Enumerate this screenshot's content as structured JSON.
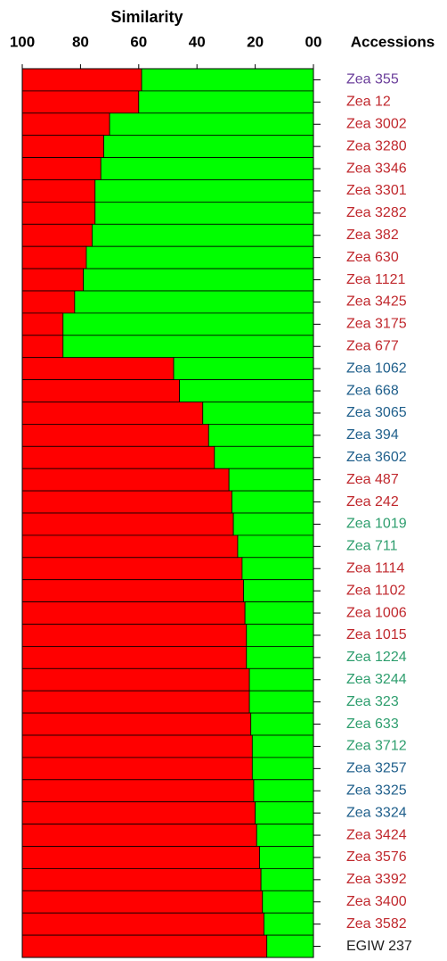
{
  "chart_data": {
    "type": "bar",
    "orientation": "horizontal",
    "title": "Similarity",
    "y_label": "Accessions",
    "categories": [
      "Zea 355",
      "Zea 12",
      "Zea 3002",
      "Zea 3280",
      "Zea 3346",
      "Zea 3301",
      "Zea 3282",
      "Zea 382",
      "Zea 630",
      "Zea 1121",
      "Zea 3425",
      "Zea 3175",
      "Zea 677",
      "Zea 1062",
      "Zea 668",
      "Zea 3065",
      "Zea 394",
      "Zea 3602",
      "Zea 487",
      "Zea 242",
      "Zea 1019",
      "Zea 711",
      "Zea 1114",
      "Zea 1102",
      "Zea 1006",
      "Zea 1015",
      "Zea 1224",
      "Zea 3244",
      "Zea 323",
      "Zea 633",
      "Zea 3712",
      "Zea 3257",
      "Zea 3325",
      "Zea 3324",
      "Zea 3424",
      "Zea 3576",
      "Zea 3392",
      "Zea 3400",
      "Zea 3582",
      "EGIW 237"
    ],
    "values": [
      59,
      60,
      70,
      72,
      73,
      75,
      75,
      76,
      78,
      79,
      82,
      86,
      86,
      48,
      46,
      38,
      36,
      34,
      29,
      28,
      27.5,
      26,
      24.5,
      24,
      23.5,
      23,
      23,
      22,
      22,
      21.5,
      21,
      21,
      20.5,
      20,
      19.5,
      18.5,
      18,
      17.5,
      17,
      16
    ],
    "label_colors": [
      "#6a3d9a",
      "#c0282d",
      "#c0282d",
      "#c0282d",
      "#c0282d",
      "#c0282d",
      "#c0282d",
      "#c0282d",
      "#c0282d",
      "#c0282d",
      "#c0282d",
      "#c0282d",
      "#c0282d",
      "#1f5f8b",
      "#1f5f8b",
      "#1f5f8b",
      "#1f5f8b",
      "#1f5f8b",
      "#c0282d",
      "#c0282d",
      "#2e9e6e",
      "#2e9e6e",
      "#c0282d",
      "#c0282d",
      "#c0282d",
      "#c0282d",
      "#2e9e6e",
      "#2e9e6e",
      "#2e9e6e",
      "#2e9e6e",
      "#2e9e6e",
      "#1f5f8b",
      "#1f5f8b",
      "#1f5f8b",
      "#c0282d",
      "#c0282d",
      "#c0282d",
      "#c0282d",
      "#c0282d",
      "#222222"
    ],
    "bar_colors": [
      "#ff0000",
      "#00ff00"
    ],
    "xlim": [
      100,
      0
    ],
    "xticks": [
      100,
      80,
      60,
      40,
      20,
      {
        "value": 0,
        "label": "00"
      }
    ]
  }
}
